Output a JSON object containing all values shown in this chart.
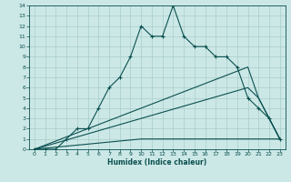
{
  "xlabel": "Humidex (Indice chaleur)",
  "bg_color": "#cce8e6",
  "grid_color": "#a8ceca",
  "line_color": "#0a5050",
  "xlim": [
    -0.5,
    23.5
  ],
  "ylim": [
    0,
    14
  ],
  "xticks": [
    0,
    1,
    2,
    3,
    4,
    5,
    6,
    7,
    8,
    9,
    10,
    11,
    12,
    13,
    14,
    15,
    16,
    17,
    18,
    19,
    20,
    21,
    22,
    23
  ],
  "yticks": [
    0,
    1,
    2,
    3,
    4,
    5,
    6,
    7,
    8,
    9,
    10,
    11,
    12,
    13,
    14
  ],
  "series1_x": [
    0,
    1,
    2,
    3,
    4,
    5,
    6,
    7,
    8,
    9,
    10,
    11,
    12,
    13,
    14,
    15,
    16,
    17,
    18,
    19,
    20,
    21,
    22,
    23
  ],
  "series1_y": [
    0,
    0,
    0,
    1,
    2,
    2,
    4,
    6,
    7,
    9,
    12,
    11,
    11,
    14,
    11,
    10,
    10,
    9,
    9,
    8,
    5,
    4,
    3,
    1
  ],
  "series2_x": [
    0,
    20,
    21,
    23
  ],
  "series2_y": [
    0,
    8,
    5,
    1
  ],
  "series3_x": [
    0,
    20,
    21,
    23
  ],
  "series3_y": [
    0,
    6,
    5,
    1
  ],
  "series4_x": [
    0,
    10,
    23
  ],
  "series4_y": [
    0,
    1,
    1
  ]
}
